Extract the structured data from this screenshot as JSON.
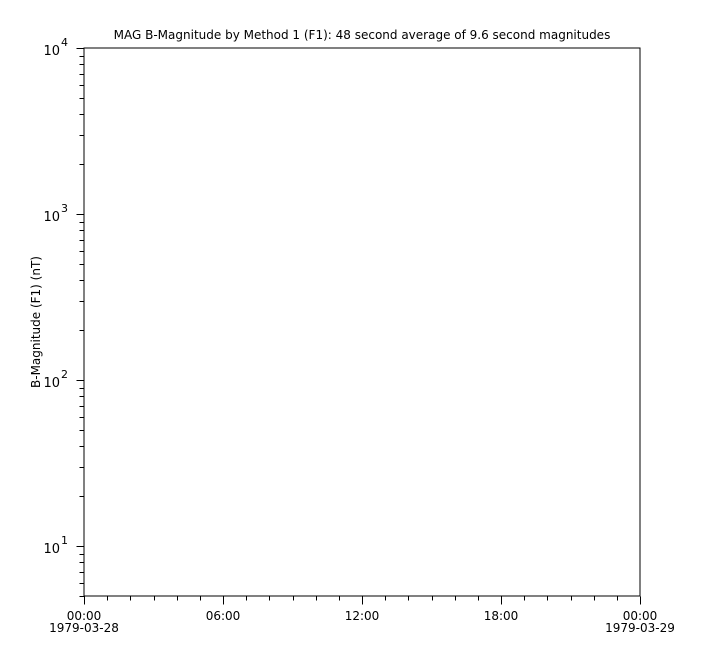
{
  "chart_data": {
    "type": "line",
    "title": "MAG  B-Magnitude by Method 1 (F1): 48 second average of 9.6 second magnitudes",
    "xlabel": "",
    "ylabel": "B-Magnitude (F1) (nT)",
    "yscale": "log",
    "ylim": [
      5,
      10000
    ],
    "xlim": [
      "1979-03-28 00:00",
      "1979-03-29 00:00"
    ],
    "x_ticks": [
      {
        "time": "00:00",
        "date": "1979-03-28",
        "hour": 0
      },
      {
        "time": "06:00",
        "date": "",
        "hour": 6
      },
      {
        "time": "12:00",
        "date": "",
        "hour": 12
      },
      {
        "time": "18:00",
        "date": "",
        "hour": 18
      },
      {
        "time": "00:00",
        "date": "1979-03-29",
        "hour": 24
      }
    ],
    "y_ticks": [
      {
        "base": "10",
        "exp": "1",
        "value": 10
      },
      {
        "base": "10",
        "exp": "2",
        "value": 100
      },
      {
        "base": "10",
        "exp": "3",
        "value": 1000
      },
      {
        "base": "10",
        "exp": "4",
        "value": 10000
      }
    ],
    "series": [],
    "grid": false,
    "colors": {
      "axis": "#000000",
      "background": "#ffffff"
    }
  }
}
